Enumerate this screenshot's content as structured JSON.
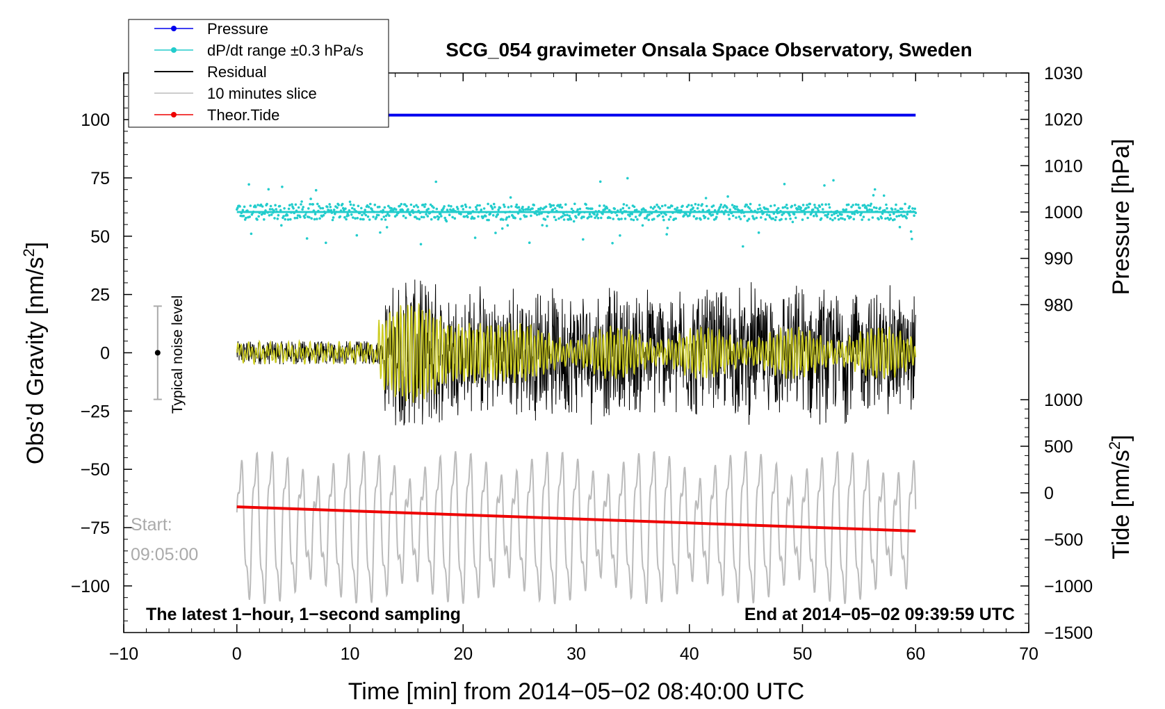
{
  "chart_data": {
    "type": "line",
    "title": "SCG_054 gravimeter Onsala Space Observatory, Sweden",
    "xlabel": "Time [min] from 2014−05−02 08:40:00 UTC",
    "ylabel_left": "Obs’d Gravity [nm/s",
    "ylabel_left_sup": "2",
    "ylabel_left_end": "]",
    "ylabel_right_pressure": "Pressure [hPa]",
    "ylabel_right_tide": "Tide [nm/s",
    "ylabel_right_tide_sup": "2",
    "ylabel_right_tide_end": "]",
    "xlim": [
      -10,
      70
    ],
    "ylim": [
      -120,
      120
    ],
    "x_ticks": [
      {
        "value": -10,
        "label": "−10"
      },
      {
        "value": 0,
        "label": "0"
      },
      {
        "value": 10,
        "label": "10"
      },
      {
        "value": 20,
        "label": "20"
      },
      {
        "value": 30,
        "label": "30"
      },
      {
        "value": 40,
        "label": "40"
      },
      {
        "value": 50,
        "label": "50"
      },
      {
        "value": 60,
        "label": "60"
      },
      {
        "value": 70,
        "label": "70"
      }
    ],
    "y_ticks_left": [
      {
        "value": 100,
        "label": "100"
      },
      {
        "value": 75,
        "label": "75"
      },
      {
        "value": 50,
        "label": "50"
      },
      {
        "value": 25,
        "label": "25"
      },
      {
        "value": 0,
        "label": "0"
      },
      {
        "value": -25,
        "label": "−25"
      },
      {
        "value": -50,
        "label": "−50"
      },
      {
        "value": -75,
        "label": "−75"
      },
      {
        "value": -100,
        "label": "−100"
      }
    ],
    "pressure_axis": {
      "range": [
        970,
        1030
      ],
      "ticks": [
        {
          "value": 1030,
          "label": "1030"
        },
        {
          "value": 1020,
          "label": "1020"
        },
        {
          "value": 1010,
          "label": "1010"
        },
        {
          "value": 1000,
          "label": "1000"
        },
        {
          "value": 990,
          "label": "990"
        },
        {
          "value": 980,
          "label": "980"
        }
      ]
    },
    "tide_axis": {
      "range": [
        -1500,
        1000
      ],
      "ticks": [
        {
          "value": 1000,
          "label": "1000"
        },
        {
          "value": 500,
          "label": "500"
        },
        {
          "value": 0,
          "label": "0"
        },
        {
          "value": -500,
          "label": "−500"
        },
        {
          "value": -1000,
          "label": "−1000"
        },
        {
          "value": -1500,
          "label": "−1500"
        }
      ]
    },
    "legend": [
      {
        "name": "Pressure",
        "color": "#0000ee",
        "marker": true
      },
      {
        "name": "dP/dt range ±0.3 hPa/s",
        "color": "#22cccc",
        "marker": true
      },
      {
        "name": "Residual",
        "color": "#000000",
        "marker": false
      },
      {
        "name": "10 minutes slice",
        "color": "#bbbbbb",
        "marker": false
      },
      {
        "name": "Theor.Tide",
        "color": "#ee0000",
        "marker": true
      }
    ],
    "series": [
      {
        "name": "Pressure",
        "axis": "pressure",
        "x_range": [
          0,
          60
        ],
        "start": 1020.9,
        "end": 1020.9
      },
      {
        "name": "dP/dt range ±0.3 hPa/s",
        "axis": "pressure",
        "x_range": [
          0,
          60
        ],
        "center": 1000,
        "spread": 2.5
      },
      {
        "name": "Residual",
        "axis": "left",
        "x_range": [
          0,
          60
        ],
        "quiet_amplitude": 5,
        "active_amplitude": 30,
        "onset_minute": 13
      },
      {
        "name": "Residual (smoothed)",
        "axis": "left",
        "x_range": [
          0,
          60
        ],
        "color": "#cccc22",
        "peak_amplitude": 20
      },
      {
        "name": "10 minutes slice",
        "axis": "left",
        "x_range": [
          0,
          60
        ],
        "center": -75,
        "amplitude": 30
      },
      {
        "name": "Theor.Tide",
        "axis": "tide",
        "x_range": [
          0,
          60
        ],
        "start": -150,
        "end": -410
      }
    ],
    "noise_bar": {
      "label": "Typical noise level",
      "x": -7,
      "center": 0,
      "low": -20,
      "high": 20
    },
    "annotations": {
      "start_label": "Start:",
      "start_time": "09:05:00",
      "bottom_left": "The latest 1−hour, 1−second sampling",
      "bottom_right": "End at 2014−05−02 09:39:59 UTC"
    },
    "colors": {
      "pressure": "#0000ee",
      "dpdt": "#22cccc",
      "residual": "#000000",
      "smoothed": "#cccc22",
      "slice": "#bbbbbb",
      "tide": "#ee0000",
      "start_text": "#aaaaaa"
    }
  }
}
